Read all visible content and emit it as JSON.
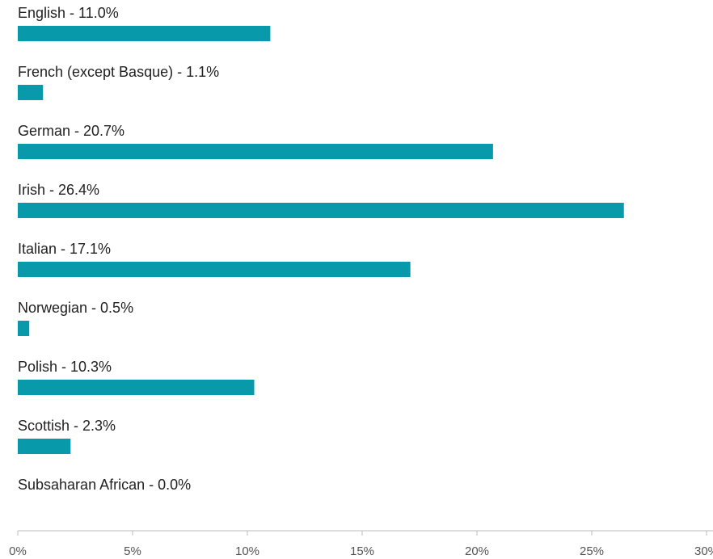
{
  "chart_data": {
    "type": "bar",
    "orientation": "horizontal",
    "categories": [
      "English - 11.0%",
      "French (except Basque) - 1.1%",
      "German - 20.7%",
      "Irish - 26.4%",
      "Italian - 17.1%",
      "Norwegian - 0.5%",
      "Polish - 10.3%",
      "Scottish - 2.3%",
      "Subsaharan African - 0.0%"
    ],
    "values": [
      11.0,
      1.1,
      20.7,
      26.4,
      17.1,
      0.5,
      10.3,
      2.3,
      0.0
    ],
    "color": "#0899ab",
    "xlim": [
      0,
      30
    ],
    "xticks": [
      {
        "value": 0,
        "label": "0%"
      },
      {
        "value": 5,
        "label": "5%"
      },
      {
        "value": 10,
        "label": "10%"
      },
      {
        "value": 15,
        "label": "15%"
      },
      {
        "value": 20,
        "label": "20%"
      },
      {
        "value": 25,
        "label": "25%"
      },
      {
        "value": 30,
        "label": "30%"
      }
    ]
  }
}
